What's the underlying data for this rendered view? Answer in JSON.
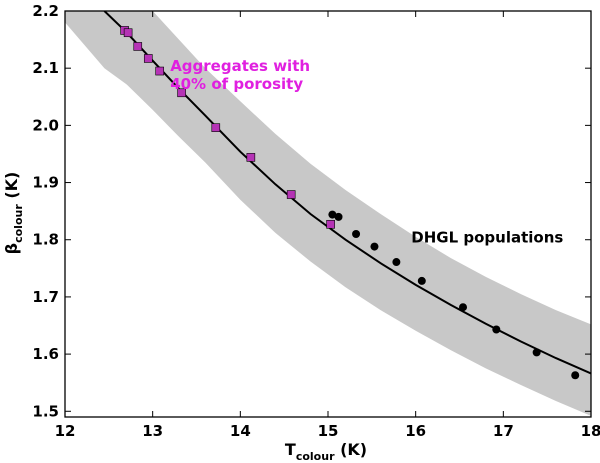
{
  "chart_data": {
    "type": "scatter",
    "title": "",
    "xlabel": {
      "main": "T",
      "sub": "colour",
      "unit": " (K)"
    },
    "ylabel": {
      "main": "β",
      "sub": "colour",
      "unit": " (K)"
    },
    "xlim": [
      12,
      18
    ],
    "ylim": [
      1.49,
      2.2
    ],
    "xticks": [
      12,
      13,
      14,
      15,
      16,
      17,
      18
    ],
    "yticks": [
      1.5,
      1.6,
      1.7,
      1.8,
      1.9,
      2.0,
      2.1,
      2.2
    ],
    "xtick_labels": [
      "12",
      "13",
      "14",
      "15",
      "16",
      "17",
      "18"
    ],
    "ytick_labels": [
      "1.5",
      "1.6",
      "1.7",
      "1.8",
      "1.9",
      "2.0",
      "2.1",
      "2.2"
    ],
    "colors": {
      "band": "#c8c8c8",
      "squares": "#b533b5",
      "circles": "#000000",
      "annotation_aggregates": "#e020e0",
      "annotation_dhgl": "#000000"
    },
    "fit_curve": {
      "name": "fit",
      "x": [
        12.45,
        12.7,
        13.0,
        13.3,
        13.6,
        14.0,
        14.4,
        14.8,
        15.2,
        15.6,
        16.0,
        16.4,
        16.8,
        17.2,
        17.6,
        18.0
      ],
      "y": [
        2.2,
        2.163,
        2.113,
        2.064,
        2.017,
        1.954,
        1.897,
        1.845,
        1.8,
        1.759,
        1.721,
        1.686,
        1.653,
        1.622,
        1.593,
        1.566
      ]
    },
    "band": {
      "x": [
        12.0,
        12.45,
        12.7,
        13.0,
        13.3,
        13.6,
        14.0,
        14.4,
        14.8,
        15.2,
        15.6,
        16.0,
        16.4,
        16.8,
        17.2,
        17.6,
        18.0
      ],
      "upper": [
        2.2,
        2.2,
        2.2,
        2.2,
        2.15,
        2.1,
        2.042,
        1.985,
        1.933,
        1.887,
        1.845,
        1.805,
        1.768,
        1.735,
        1.705,
        1.677,
        1.652
      ],
      "lower": [
        2.18,
        2.1,
        2.072,
        2.027,
        1.98,
        1.935,
        1.87,
        1.812,
        1.762,
        1.717,
        1.677,
        1.641,
        1.607,
        1.575,
        1.546,
        1.518,
        1.492
      ]
    },
    "series": [
      {
        "name": "Aggregates with 40% of porosity",
        "marker": "square",
        "x": [
          12.68,
          12.72,
          12.83,
          12.95,
          13.08,
          13.33,
          13.72,
          14.12,
          14.58,
          15.03
        ],
        "y": [
          2.166,
          2.162,
          2.138,
          2.117,
          2.095,
          2.057,
          1.996,
          1.944,
          1.879,
          1.827
        ]
      },
      {
        "name": "DHGL populations",
        "marker": "circle",
        "x": [
          15.05,
          15.12,
          15.32,
          15.53,
          15.78,
          16.07,
          16.54,
          16.92,
          17.38,
          17.82
        ],
        "y": [
          1.844,
          1.84,
          1.81,
          1.788,
          1.761,
          1.728,
          1.682,
          1.643,
          1.603,
          1.563
        ]
      }
    ],
    "annotations": [
      {
        "lines": [
          "Aggregates with",
          "40% of porosity"
        ],
        "x": 13.2,
        "y": 2.095
      },
      {
        "lines": [
          "DHGL populations"
        ],
        "x": 15.95,
        "y": 1.795
      }
    ]
  }
}
